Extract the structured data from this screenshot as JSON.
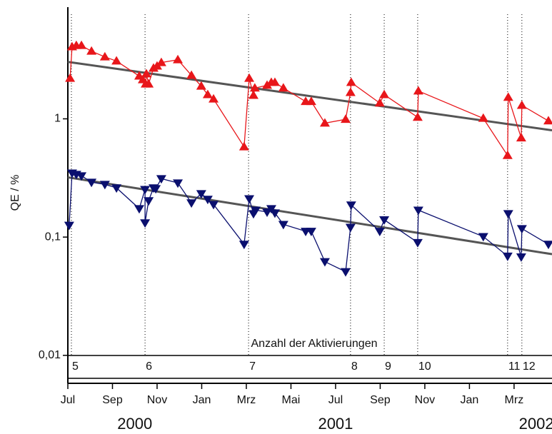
{
  "chart_data": {
    "type": "line",
    "y_label": "QE / %",
    "log_y": true,
    "xlim": [
      0,
      21.7
    ],
    "ylim": [
      0.0058,
      8.8
    ],
    "xticks": [
      {
        "value": 0,
        "label": "Jul"
      },
      {
        "value": 2,
        "label": "Sep"
      },
      {
        "value": 4,
        "label": "Nov"
      },
      {
        "value": 6,
        "label": "Jan"
      },
      {
        "value": 8,
        "label": "Mrz"
      },
      {
        "value": 10,
        "label": "Mai"
      },
      {
        "value": 12,
        "label": "Jul"
      },
      {
        "value": 14,
        "label": "Sep"
      },
      {
        "value": 16,
        "label": "Nov"
      },
      {
        "value": 18,
        "label": "Jan"
      },
      {
        "value": 20,
        "label": "Mrz"
      }
    ],
    "yticks": [
      {
        "value": 0.01,
        "label": "0,01"
      },
      {
        "value": 0.1,
        "label": "0,1"
      },
      1
    ],
    "year_labels": [
      {
        "x": 3,
        "label": "2000"
      },
      {
        "x": 12,
        "label": "2001"
      },
      {
        "x": 21,
        "label": "2002"
      }
    ],
    "activations": {
      "title": "Anzahl der Aktivierungen",
      "x": [
        0.16,
        3.46,
        8.1,
        12.67,
        14.18,
        15.68,
        19.71,
        20.35
      ],
      "labels": [
        5,
        6,
        7,
        8,
        9,
        10,
        11,
        12
      ]
    },
    "series": [
      {
        "color": "#e8161a",
        "marker": "up",
        "x": [
          0.1,
          0.19,
          0.38,
          0.61,
          1.06,
          1.66,
          2.18,
          3.2,
          3.36,
          3.49,
          3.52,
          3.62,
          3.84,
          4.0,
          4.19,
          4.93,
          5.54,
          5.98,
          6.27,
          6.53,
          7.9,
          8.13,
          8.32,
          8.38,
          8.93,
          9.12,
          9.28,
          9.66,
          10.66,
          10.91,
          11.52,
          12.45,
          12.67,
          12.7,
          13.98,
          14.18,
          15.68,
          15.71,
          18.62,
          19.71,
          19.74,
          20.32,
          20.35,
          21.54
        ],
        "values": [
          2.2,
          4.06,
          4.17,
          4.17,
          3.73,
          3.34,
          3.08,
          2.3,
          2.14,
          1.97,
          2.4,
          1.97,
          2.68,
          2.79,
          2.99,
          3.16,
          2.33,
          1.89,
          1.6,
          1.47,
          0.58,
          2.2,
          1.58,
          1.82,
          1.92,
          2.03,
          2.03,
          1.82,
          1.4,
          1.4,
          0.92,
          0.99,
          1.67,
          2.03,
          1.36,
          1.6,
          1.03,
          1.72,
          1.01,
          0.49,
          1.52,
          0.69,
          1.3,
          0.96
        ]
      },
      {
        "color": "#0a0f6e",
        "marker": "down",
        "x": [
          0.06,
          0.19,
          0.38,
          0.61,
          1.06,
          1.66,
          2.18,
          3.2,
          3.46,
          3.46,
          3.62,
          3.84,
          3.94,
          4.19,
          4.93,
          5.54,
          5.98,
          6.27,
          6.53,
          7.9,
          8.13,
          8.32,
          8.42,
          8.93,
          9.12,
          9.28,
          9.66,
          10.66,
          10.91,
          11.52,
          12.45,
          12.67,
          12.7,
          13.98,
          14.18,
          15.68,
          15.71,
          18.62,
          19.71,
          19.74,
          20.32,
          20.35,
          21.54
        ],
        "values": [
          0.126,
          0.348,
          0.339,
          0.33,
          0.291,
          0.279,
          0.261,
          0.174,
          0.253,
          0.132,
          0.203,
          0.261,
          0.257,
          0.312,
          0.287,
          0.195,
          0.233,
          0.209,
          0.189,
          0.087,
          0.211,
          0.158,
          0.169,
          0.163,
          0.174,
          0.16,
          0.128,
          0.112,
          0.112,
          0.062,
          0.051,
          0.121,
          0.187,
          0.112,
          0.14,
          0.09,
          0.169,
          0.101,
          0.069,
          0.158,
          0.068,
          0.118,
          0.087
        ]
      }
    ],
    "fits": [
      {
        "color": "#555555",
        "x": [
          0,
          21.7
        ],
        "values": [
          3.03,
          0.8
        ]
      },
      {
        "color": "#555555",
        "x": [
          0,
          21.7
        ],
        "values": [
          0.32,
          0.0717
        ]
      }
    ]
  }
}
